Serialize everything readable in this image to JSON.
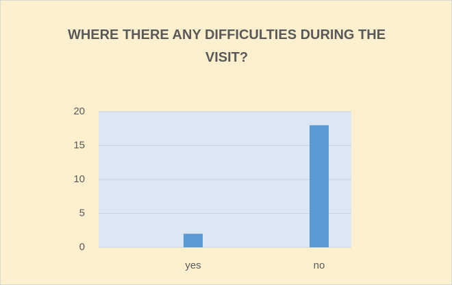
{
  "chart_data": {
    "type": "bar",
    "title": "WHERE THERE ANY DIFFICULTIES DURING THE VISIT?",
    "categories": [
      "yes",
      "no"
    ],
    "values": [
      2,
      18
    ],
    "color": "#5b9bd5",
    "ylim": [
      0,
      20
    ],
    "yticks": [
      0,
      5,
      10,
      15,
      20
    ],
    "grid": true
  }
}
